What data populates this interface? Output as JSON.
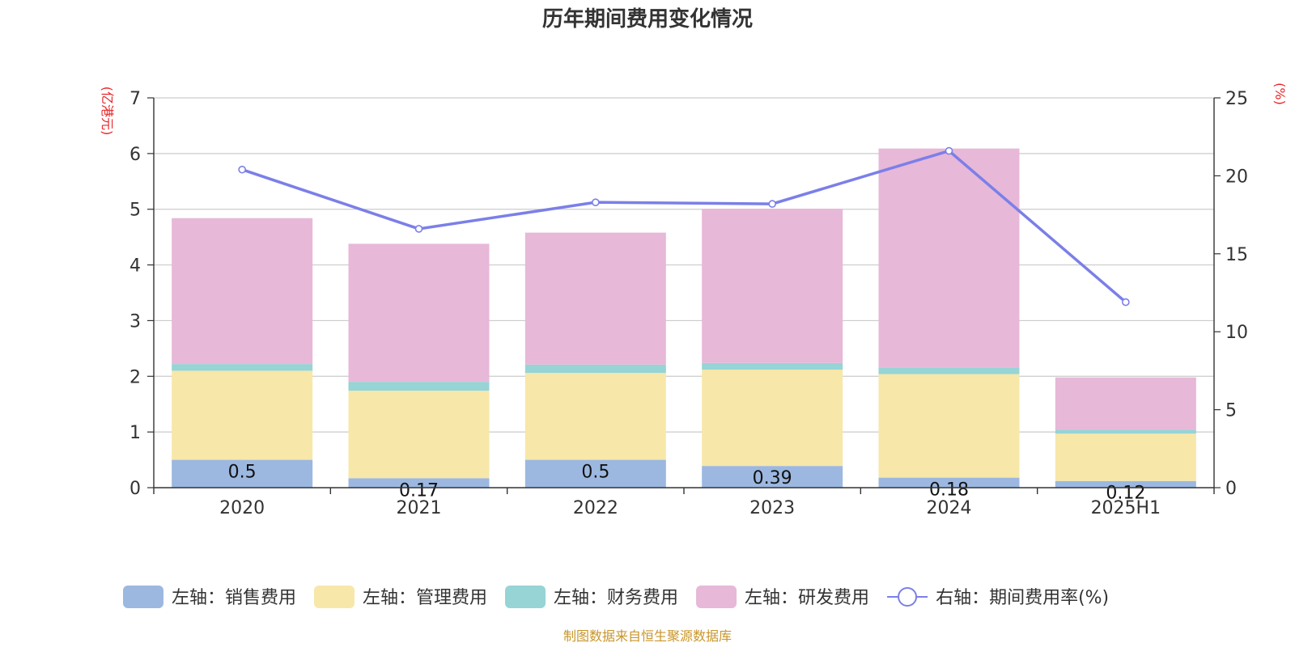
{
  "chart_data": {
    "type": "bar",
    "stacked": true,
    "title": "历年期间费用变化情况",
    "categories": [
      "2020",
      "2021",
      "2022",
      "2023",
      "2024",
      "2025H1"
    ],
    "left_axis": {
      "unit_label": "(亿港元)",
      "range": [
        0,
        7
      ],
      "ticks": [
        "0",
        "1",
        "2",
        "3",
        "4",
        "5",
        "6",
        "7"
      ]
    },
    "right_axis": {
      "unit_label": "(%)",
      "range": [
        0,
        25
      ],
      "ticks": [
        "0",
        "5",
        "10",
        "15",
        "20",
        "25"
      ]
    },
    "series": [
      {
        "name": "左轴：销售费用",
        "axis": "left",
        "type": "bar",
        "color": "#9cb8e0",
        "values": [
          0.5,
          0.17,
          0.5,
          0.39,
          0.18,
          0.12
        ],
        "labels": [
          "0.5",
          "0.17",
          "0.5",
          "0.39",
          "0.18",
          "0.12"
        ]
      },
      {
        "name": "左轴：管理费用",
        "axis": "left",
        "type": "bar",
        "color": "#f7e7a9",
        "values": [
          1.6,
          1.57,
          1.56,
          1.73,
          1.86,
          0.85
        ]
      },
      {
        "name": "左轴：财务费用",
        "axis": "left",
        "type": "bar",
        "color": "#96d4d6",
        "values": [
          0.12,
          0.16,
          0.15,
          0.12,
          0.11,
          0.07
        ]
      },
      {
        "name": "左轴：研发费用",
        "axis": "left",
        "type": "bar",
        "color": "#e7b8d8",
        "values": [
          2.62,
          2.48,
          2.37,
          2.77,
          3.94,
          0.94
        ]
      },
      {
        "name": "右轴：期间费用率(%)",
        "axis": "right",
        "type": "line",
        "color": "#7b7fe8",
        "values": [
          20.4,
          16.6,
          18.3,
          18.2,
          21.6,
          11.9
        ]
      }
    ],
    "legend_position": "bottom",
    "grid": true
  },
  "source_note": "制图数据来自恒生聚源数据库"
}
